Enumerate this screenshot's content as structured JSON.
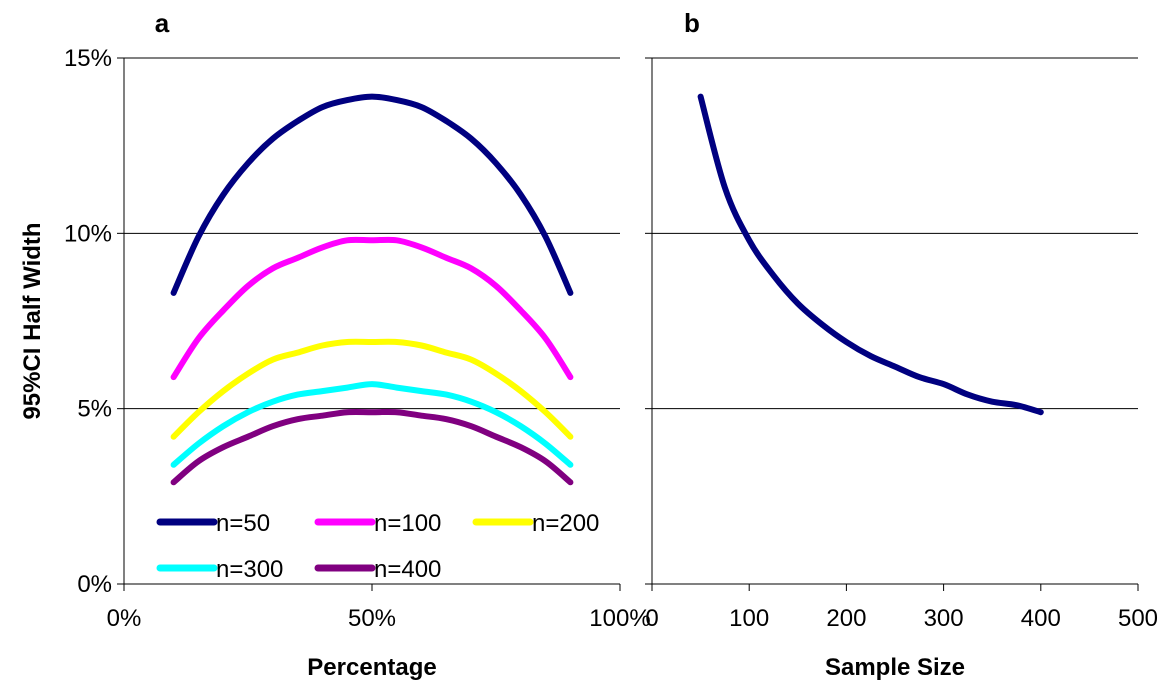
{
  "chart_data": [
    {
      "type": "line",
      "panel_label": "a",
      "xlabel": "Percentage",
      "ylabel": "95%CI Half Width",
      "xlim": [
        0,
        100
      ],
      "ylim": [
        0,
        15
      ],
      "x_ticks": [
        "0%",
        "50%",
        "100%"
      ],
      "y_ticks": [
        "0%",
        "5%",
        "10%",
        "15%"
      ],
      "grid": "horizontal",
      "legend": "bottom-left",
      "x": [
        10,
        15,
        20,
        25,
        30,
        35,
        40,
        45,
        50,
        55,
        60,
        65,
        70,
        75,
        80,
        85,
        90
      ],
      "series": [
        {
          "name": "n=50",
          "color": "#000080",
          "values": [
            8.3,
            9.9,
            11.1,
            12.0,
            12.7,
            13.2,
            13.6,
            13.8,
            13.9,
            13.8,
            13.6,
            13.2,
            12.7,
            12.0,
            11.1,
            9.9,
            8.3
          ]
        },
        {
          "name": "n=100",
          "color": "#FF00FF",
          "values": [
            5.9,
            7.0,
            7.8,
            8.5,
            9.0,
            9.3,
            9.6,
            9.8,
            9.8,
            9.8,
            9.6,
            9.3,
            9.0,
            8.5,
            7.8,
            7.0,
            5.9
          ]
        },
        {
          "name": "n=200",
          "color": "#FFFF00",
          "values": [
            4.2,
            4.9,
            5.5,
            6.0,
            6.4,
            6.6,
            6.8,
            6.9,
            6.9,
            6.9,
            6.8,
            6.6,
            6.4,
            6.0,
            5.5,
            4.9,
            4.2
          ]
        },
        {
          "name": "n=300",
          "color": "#00FFFF",
          "values": [
            3.4,
            4.0,
            4.5,
            4.9,
            5.2,
            5.4,
            5.5,
            5.6,
            5.7,
            5.6,
            5.5,
            5.4,
            5.2,
            4.9,
            4.5,
            4.0,
            3.4
          ]
        },
        {
          "name": "n=400",
          "color": "#800080",
          "values": [
            2.9,
            3.5,
            3.9,
            4.2,
            4.5,
            4.7,
            4.8,
            4.9,
            4.9,
            4.9,
            4.8,
            4.7,
            4.5,
            4.2,
            3.9,
            3.5,
            2.9
          ]
        }
      ]
    },
    {
      "type": "line",
      "panel_label": "b",
      "xlabel": "Sample Size",
      "ylabel": "",
      "xlim": [
        0,
        500
      ],
      "ylim": [
        0,
        15
      ],
      "x_ticks": [
        "0",
        "100",
        "200",
        "300",
        "400",
        "500"
      ],
      "grid": "horizontal",
      "x": [
        50,
        75,
        100,
        125,
        150,
        175,
        200,
        225,
        250,
        275,
        300,
        325,
        350,
        375,
        400
      ],
      "series": [
        {
          "color": "#000080",
          "values": [
            13.9,
            11.3,
            9.8,
            8.8,
            8.0,
            7.4,
            6.9,
            6.5,
            6.2,
            5.9,
            5.7,
            5.4,
            5.2,
            5.1,
            4.9
          ]
        }
      ]
    }
  ]
}
